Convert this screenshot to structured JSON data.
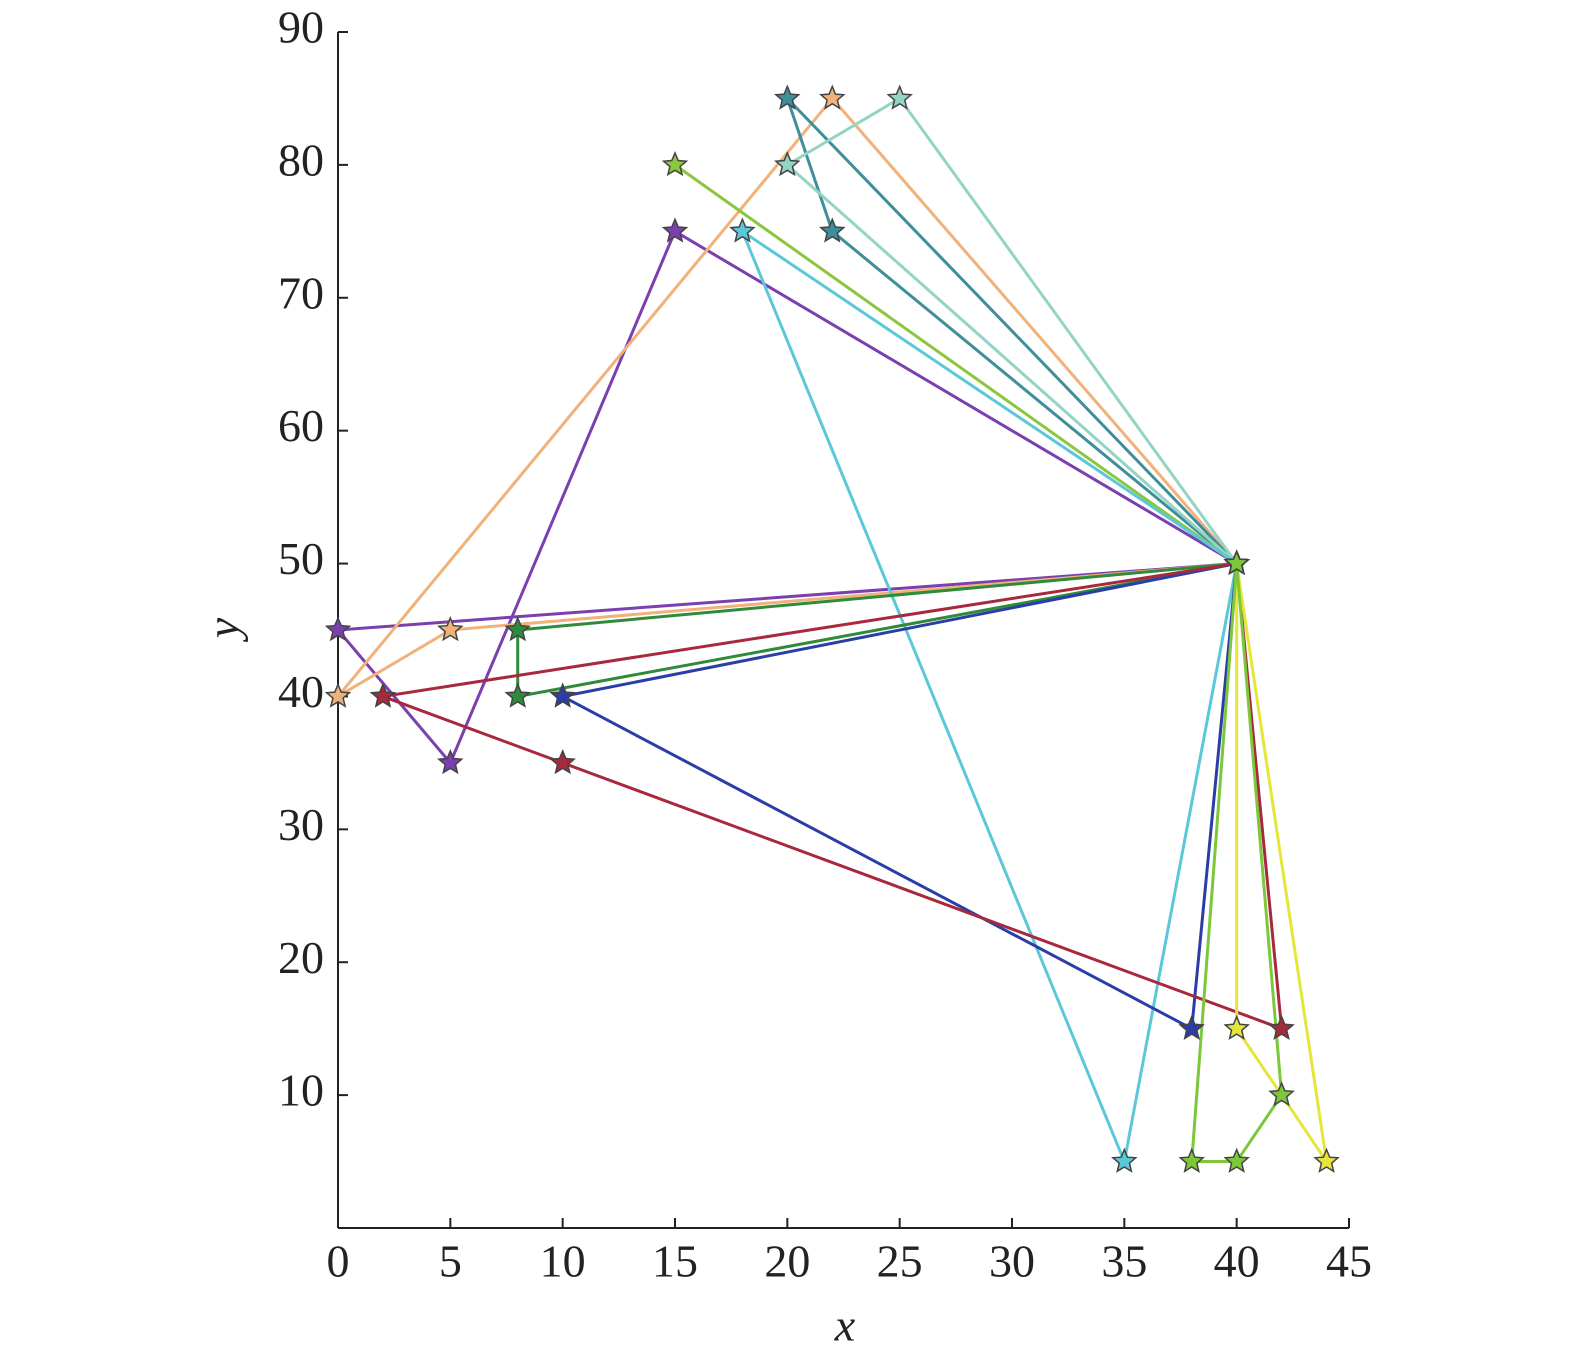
{
  "chart_data": {
    "type": "line",
    "xlabel": "x",
    "ylabel": "y",
    "xlim": [
      0,
      45
    ],
    "ylim": [
      0,
      90
    ],
    "xticks": [
      0,
      5,
      10,
      15,
      20,
      25,
      30,
      35,
      40,
      45
    ],
    "yticks": [
      10,
      20,
      30,
      40,
      50,
      60,
      70,
      80,
      90
    ],
    "marker": "star",
    "series": [
      {
        "color": "#7b3fb0",
        "x": [
          40,
          15,
          5,
          0,
          40
        ],
        "y": [
          50,
          75,
          35,
          45,
          50
        ]
      },
      {
        "color": "#f0b27a",
        "x": [
          40,
          22,
          0,
          5,
          40
        ],
        "y": [
          50,
          85,
          40,
          45,
          50
        ]
      },
      {
        "color": "#3f8f9a",
        "x": [
          40,
          22,
          20,
          40
        ],
        "y": [
          50,
          75,
          85,
          50
        ]
      },
      {
        "color": "#93d4c4",
        "x": [
          40,
          25,
          20,
          40
        ],
        "y": [
          50,
          85,
          80,
          50
        ]
      },
      {
        "color": "#8cc63f",
        "x": [
          40,
          15,
          40
        ],
        "y": [
          50,
          80,
          50
        ]
      },
      {
        "color": "#5bc8d8",
        "x": [
          40,
          18,
          35,
          40
        ],
        "y": [
          50,
          75,
          5,
          50
        ]
      },
      {
        "color": "#2e8b3a",
        "x": [
          40,
          8,
          8,
          40
        ],
        "y": [
          50,
          45,
          40,
          50
        ]
      },
      {
        "color": "#2b3ea8",
        "x": [
          40,
          10,
          38,
          40
        ],
        "y": [
          50,
          40,
          15,
          50
        ]
      },
      {
        "color": "#a8283c",
        "x": [
          40,
          2,
          10,
          42,
          40
        ],
        "y": [
          50,
          40,
          35,
          15,
          50
        ]
      },
      {
        "color": "#e6e63a",
        "x": [
          40,
          40,
          44,
          40
        ],
        "y": [
          50,
          15,
          5,
          50
        ]
      },
      {
        "color": "#7cc83a",
        "x": [
          40,
          38,
          40,
          42,
          40
        ],
        "y": [
          50,
          5,
          5,
          10,
          50
        ]
      }
    ]
  }
}
